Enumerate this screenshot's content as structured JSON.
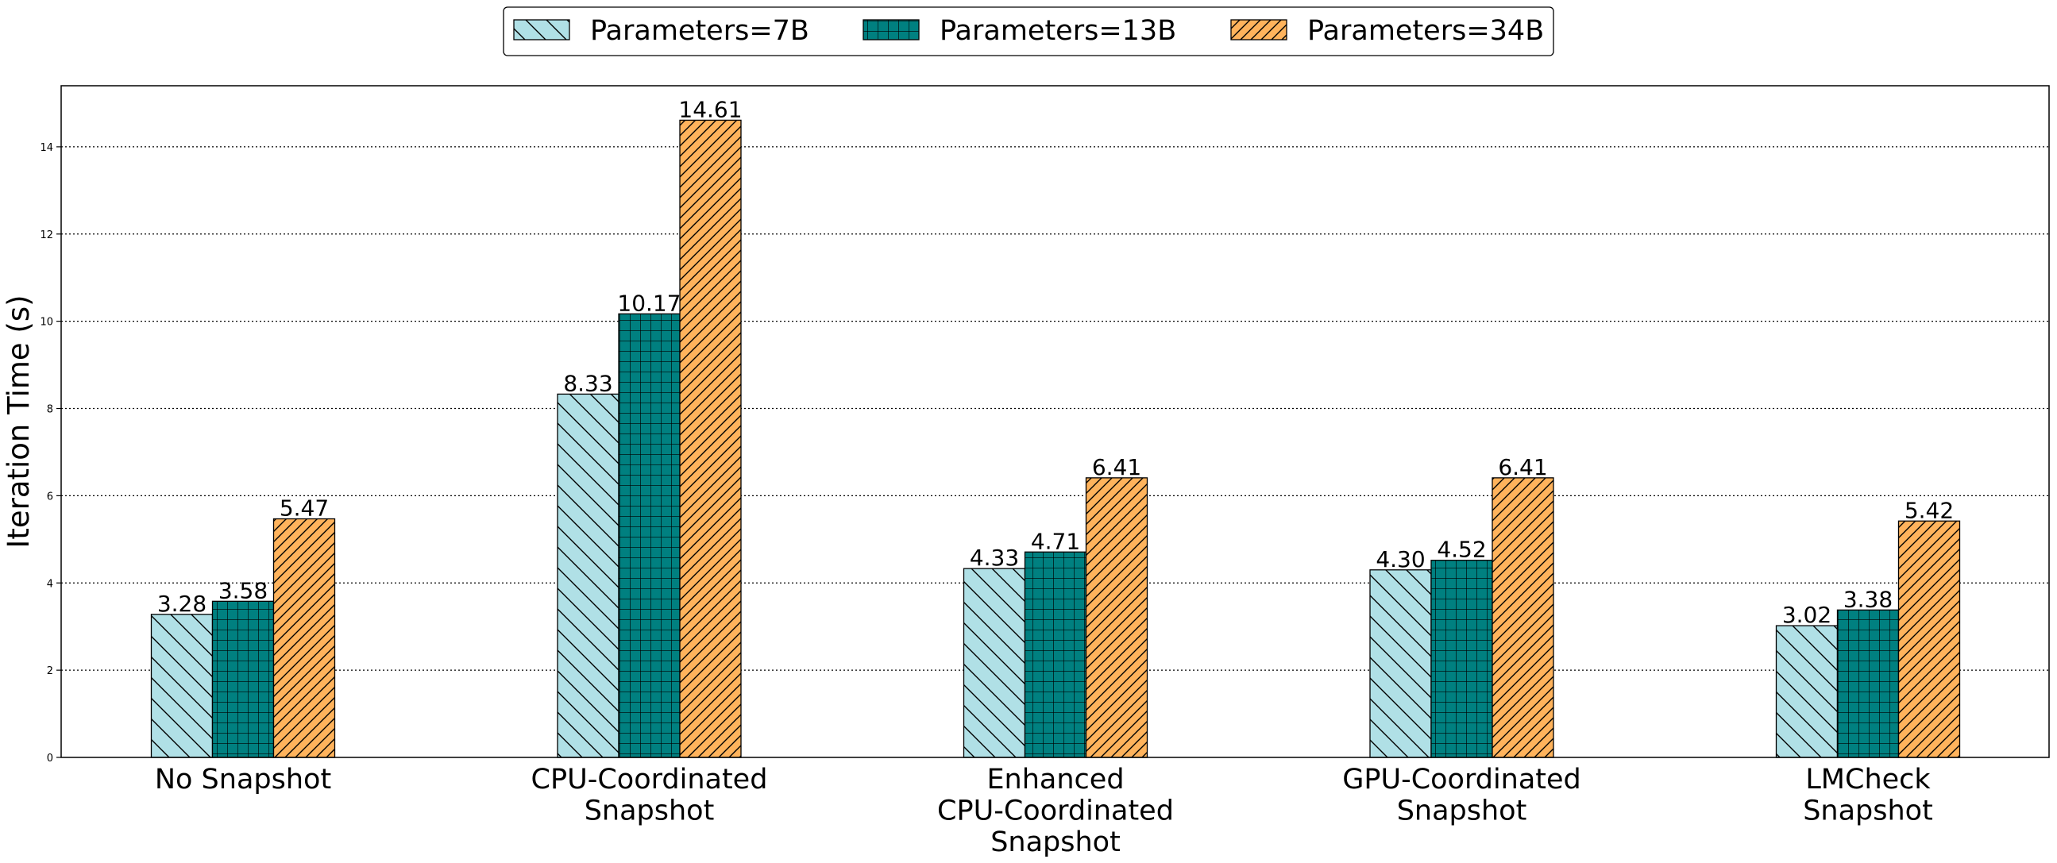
{
  "chart_data": {
    "type": "bar",
    "title": "",
    "xlabel": "",
    "ylabel": "Iteration Time (s)",
    "categories": [
      [
        "No Snapshot"
      ],
      [
        "CPU-Coordinated",
        "Snapshot"
      ],
      [
        "Enhanced",
        "CPU-Coordinated",
        "Snapshot"
      ],
      [
        "GPU-Coordinated",
        "Snapshot"
      ],
      [
        "LMCheck",
        "Snapshot"
      ]
    ],
    "series": [
      {
        "name": "Parameters=7B",
        "values": [
          3.28,
          8.33,
          4.33,
          4.3,
          3.02
        ],
        "color": "#b0e0e6",
        "hatch": "backslash"
      },
      {
        "name": "Parameters=13B",
        "values": [
          3.58,
          10.17,
          4.71,
          4.52,
          3.38
        ],
        "color": "#008080",
        "hatch": "grid"
      },
      {
        "name": "Parameters=34B",
        "values": [
          5.47,
          14.61,
          6.41,
          6.41,
          5.42
        ],
        "color": "#ffb35c",
        "hatch": "slash"
      }
    ],
    "value_labels": [
      [
        "3.28",
        "8.33",
        "4.33",
        "4.30",
        "3.02"
      ],
      [
        "3.58",
        "10.17",
        "4.71",
        "4.52",
        "3.38"
      ],
      [
        "5.47",
        "14.61",
        "6.41",
        "6.41",
        "5.42"
      ]
    ],
    "ylim": [
      0,
      15.4
    ],
    "yticks": [
      0,
      2,
      4,
      6,
      8,
      10,
      12,
      14
    ],
    "grid": "horizontal-dotted",
    "legend_position": "top-center"
  }
}
